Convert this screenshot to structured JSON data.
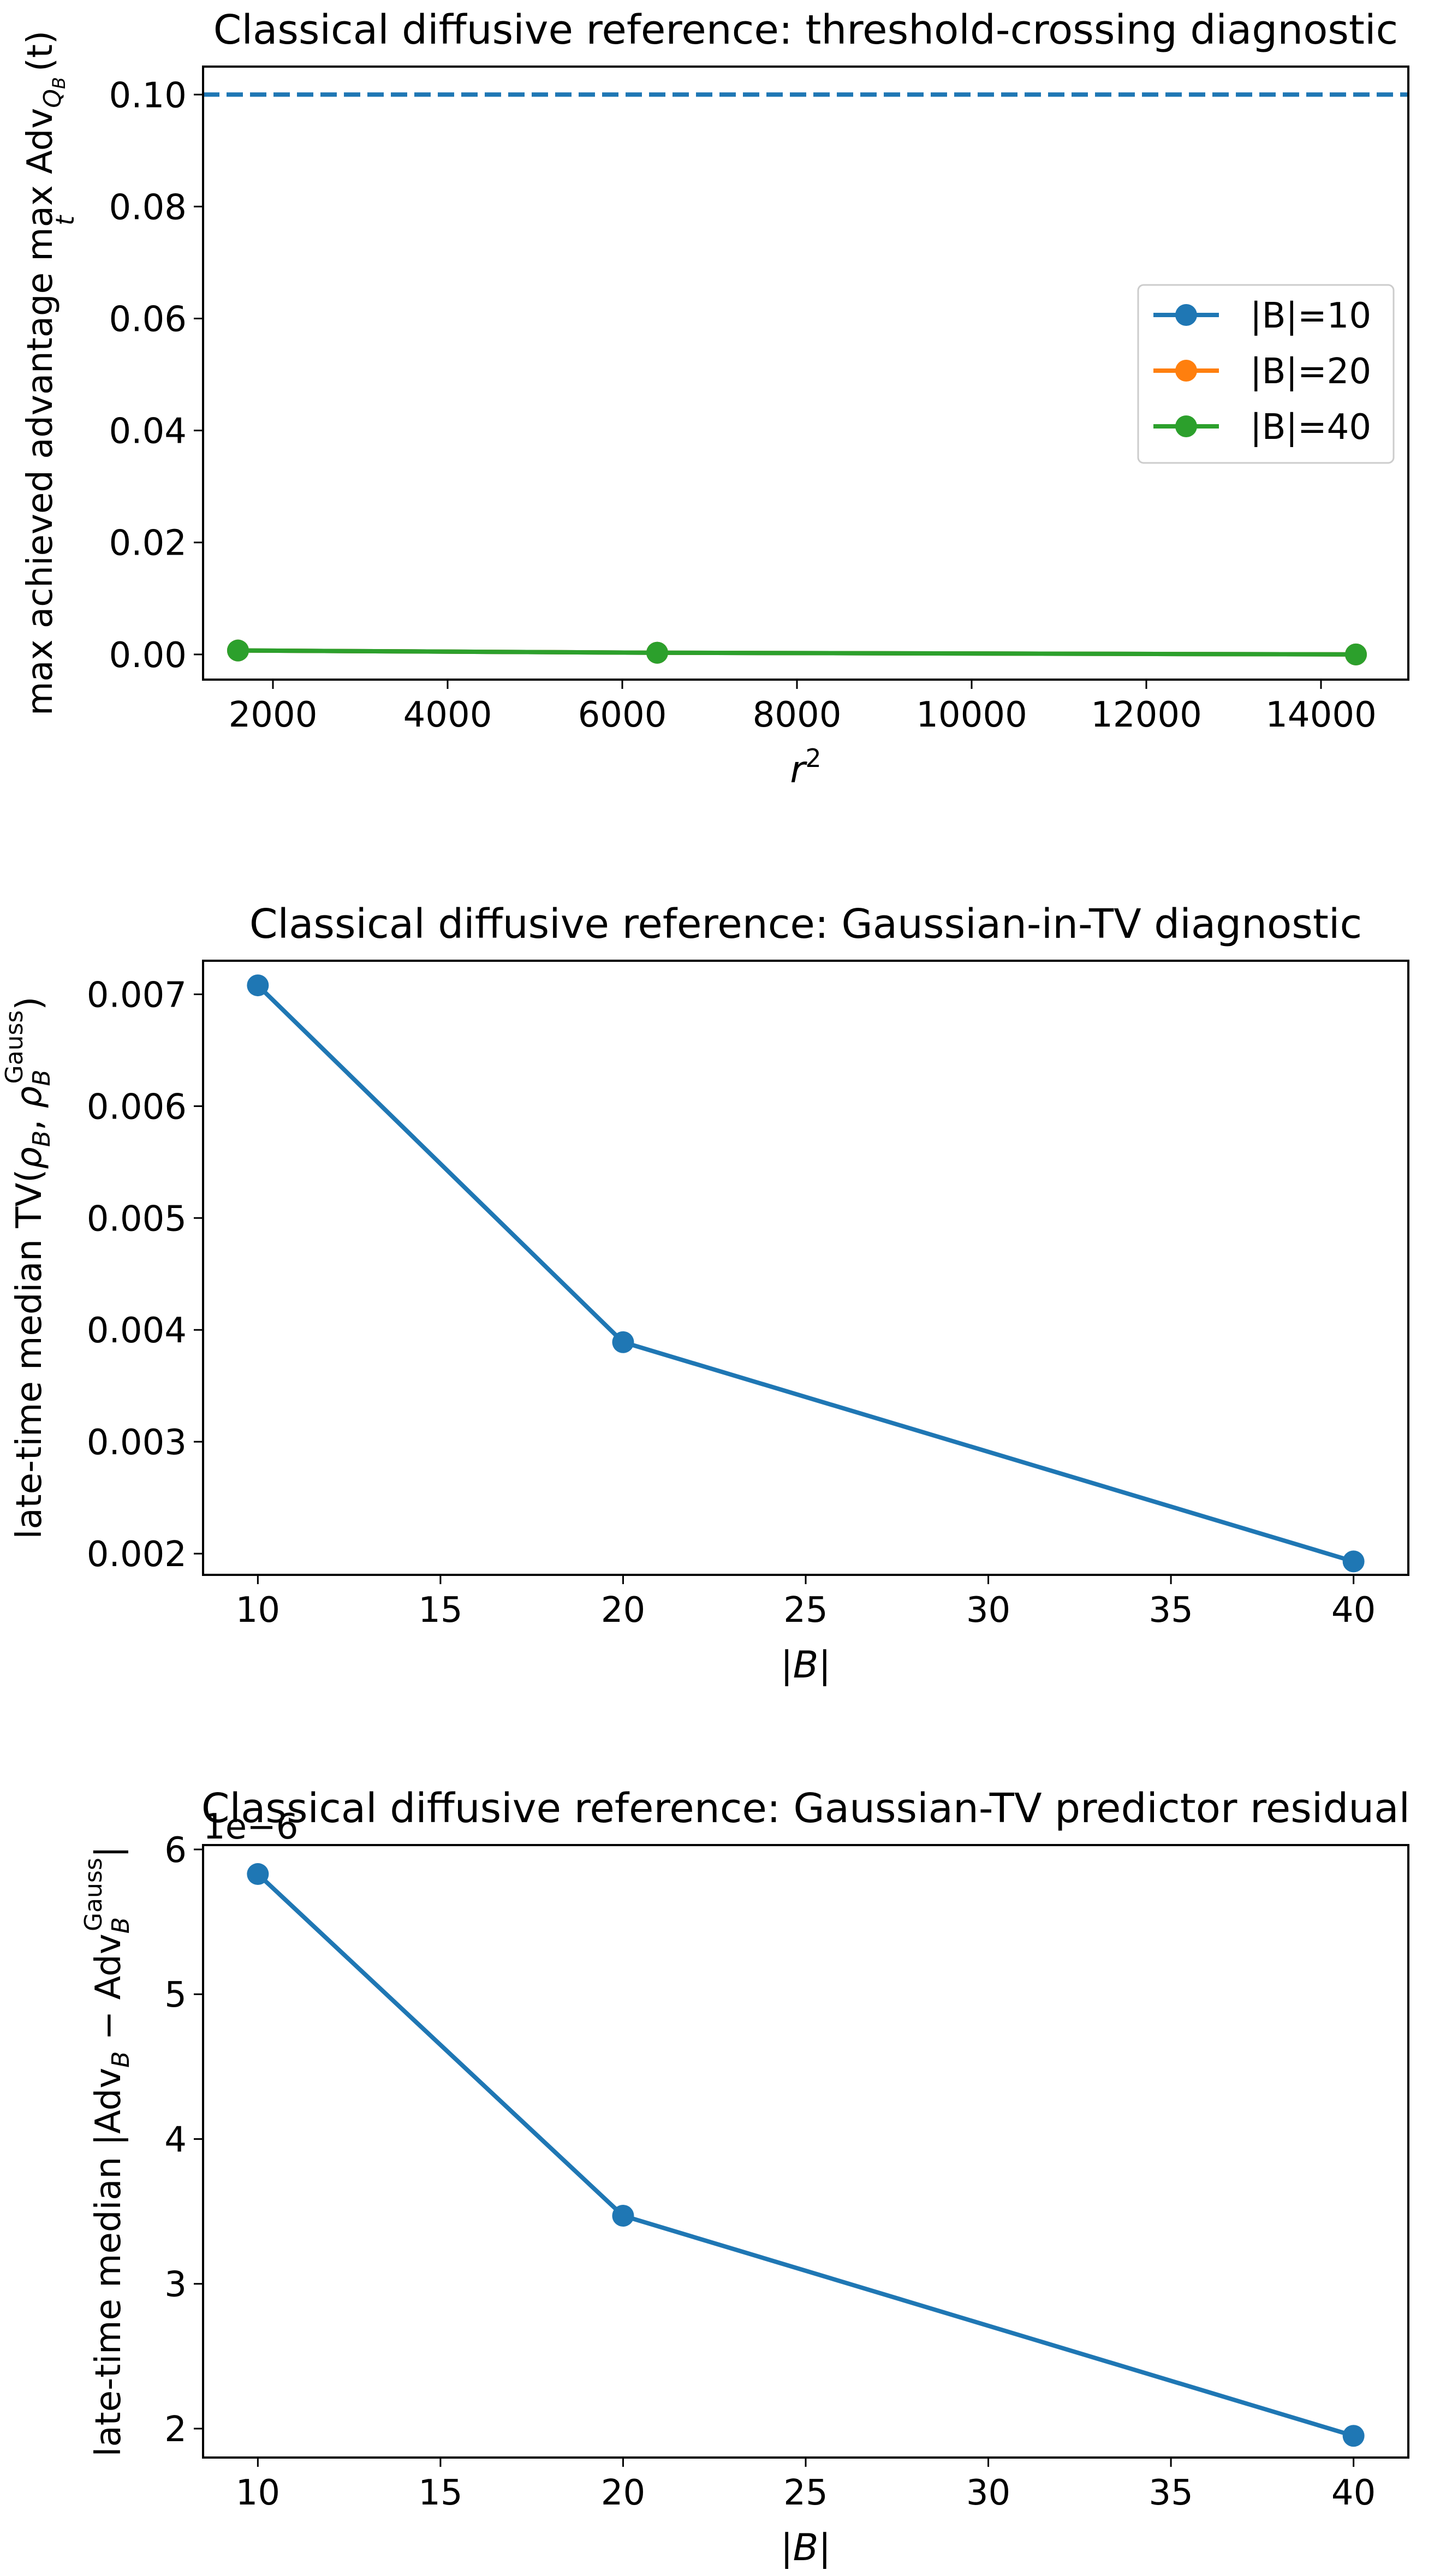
{
  "chart_data": [
    {
      "type": "line",
      "title": "Classical diffusive reference: threshold-crossing diagnostic",
      "xlabel": "r²",
      "ylabel": "max achieved advantage max_t Adv_{Q_B}(t)",
      "ylabel_parts": {
        "pre": "max achieved advantage max",
        "under": "t",
        "mid": " Adv",
        "sub": "Q",
        "subsub": "B",
        "post": "(t)"
      },
      "xlim": [
        1200,
        15000
      ],
      "ylim": [
        -0.0045,
        0.105
      ],
      "xticks": [
        2000,
        4000,
        6000,
        8000,
        10000,
        12000,
        14000
      ],
      "xtick_labels": [
        "2000",
        "4000",
        "6000",
        "8000",
        "10000",
        "12000",
        "14000"
      ],
      "yticks": [
        0.0,
        0.02,
        0.04,
        0.06,
        0.08,
        0.1
      ],
      "ytick_labels": [
        "0.00",
        "0.02",
        "0.04",
        "0.06",
        "0.08",
        "0.10"
      ],
      "hline": {
        "y": 0.1,
        "style": "dashed",
        "color": "#1f77b4"
      },
      "x": [
        1600,
        6400,
        14400
      ],
      "series": [
        {
          "name": "|B|=10",
          "color": "#1f77b4",
          "values": [
            0.0007,
            0.0003,
            0.0
          ]
        },
        {
          "name": "|B|=20",
          "color": "#ff7f0e",
          "values": [
            0.0007,
            0.0003,
            0.0
          ]
        },
        {
          "name": "|B|=40",
          "color": "#2ca02c",
          "values": [
            0.0007,
            0.0003,
            0.0
          ]
        }
      ],
      "legend": "center-right",
      "grid": false
    },
    {
      "type": "line",
      "title": "Classical diffusive reference: Gaussian-in-TV diagnostic",
      "xlabel": "|B|",
      "ylabel": "late-time median TV(ρ_B, ρ_B^Gauss)",
      "ylabel_parts": {
        "pre": "late-time median TV(",
        "rho1": "ρ",
        "sub1": "B",
        "comma": ", ",
        "rho2": "ρ",
        "sub2": "B",
        "sup2": "Gauss",
        "post": ")"
      },
      "xlim": [
        8.5,
        41.5
      ],
      "ylim": [
        0.00181,
        0.0073
      ],
      "xticks": [
        10,
        15,
        20,
        25,
        30,
        35,
        40
      ],
      "xtick_labels": [
        "10",
        "15",
        "20",
        "25",
        "30",
        "35",
        "40"
      ],
      "yticks": [
        0.002,
        0.003,
        0.004,
        0.005,
        0.006,
        0.007
      ],
      "ytick_labels": [
        "0.002",
        "0.003",
        "0.004",
        "0.005",
        "0.006",
        "0.007"
      ],
      "x": [
        10,
        20,
        40
      ],
      "series": [
        {
          "color": "#1f77b4",
          "values": [
            0.00708,
            0.00389,
            0.00193
          ]
        }
      ],
      "grid": false
    },
    {
      "type": "line",
      "title": "Classical diffusive reference: Gaussian-TV predictor residual",
      "xlabel": "|B|",
      "ylabel": "late-time median |Adv_B − Adv_B^Gauss|",
      "ylabel_parts": {
        "pre": "late-time median |Adv",
        "sub1": "B",
        "minus": " − Adv",
        "sub2": "B",
        "sup2": "Gauss",
        "post": "|"
      },
      "offset_text": "1e−6",
      "xlim": [
        8.5,
        41.5
      ],
      "ylim": [
        1.8,
        6.03
      ],
      "xticks": [
        10,
        15,
        20,
        25,
        30,
        35,
        40
      ],
      "xtick_labels": [
        "10",
        "15",
        "20",
        "25",
        "30",
        "35",
        "40"
      ],
      "yticks": [
        2,
        3,
        4,
        5,
        6
      ],
      "ytick_labels": [
        "2",
        "3",
        "4",
        "5",
        "6"
      ],
      "x": [
        10,
        20,
        40
      ],
      "series": [
        {
          "color": "#1f77b4",
          "values": [
            5.83,
            3.47,
            1.95
          ]
        }
      ],
      "grid": false
    }
  ]
}
